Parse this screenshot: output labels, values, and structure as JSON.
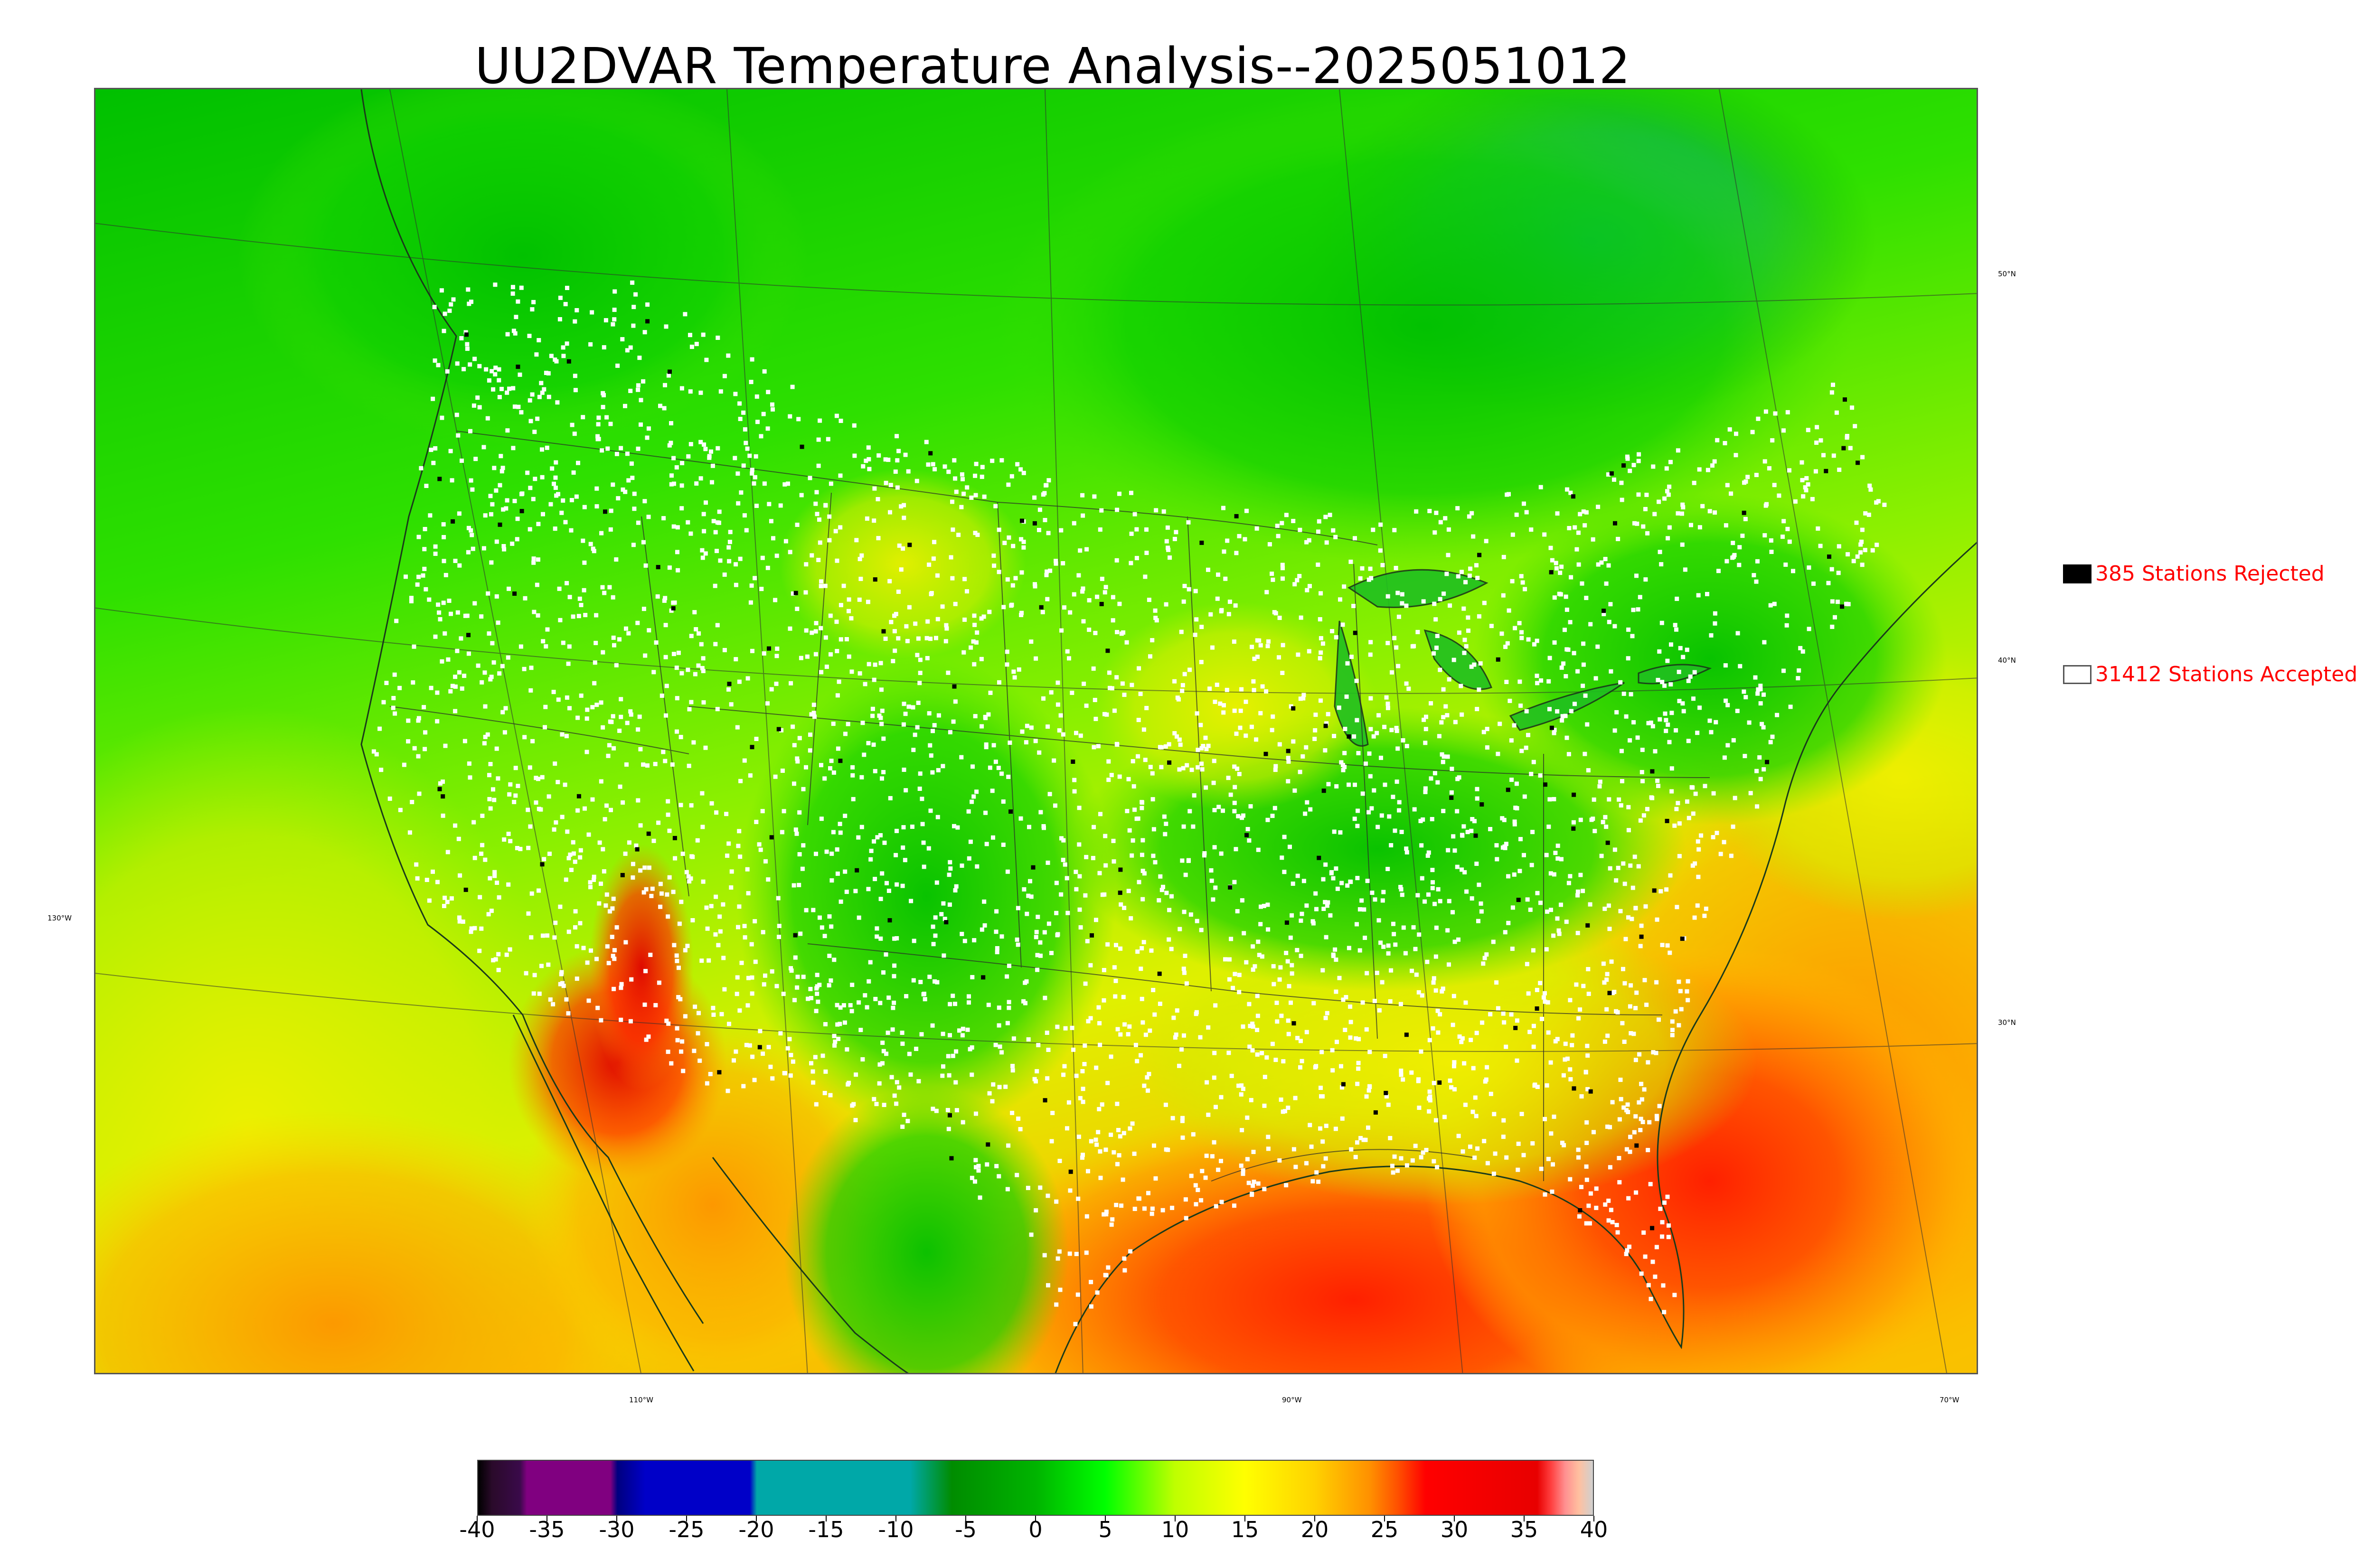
{
  "title": "UU2DVAR Temperature Analysis--2025051012",
  "map": {
    "lat_labels": [
      "50°N",
      "40°N",
      "30°N"
    ],
    "lon_labels": [
      "130°W",
      "110°W",
      "90°W",
      "70°W"
    ],
    "colors": {
      "accepted_station": "#ffffff",
      "rejected_station": "#000000",
      "coast": "#1a3a1a"
    }
  },
  "legend": {
    "rejected": {
      "label": "385 Stations Rejected",
      "count": 385,
      "swatch_color": "#000000"
    },
    "accepted": {
      "label": "31412 Stations Accepted",
      "count": 31412,
      "swatch_color": "#ffffff"
    }
  },
  "colorbar": {
    "ticks": [
      "-40",
      "-35",
      "-30",
      "-25",
      "-20",
      "-15",
      "-10",
      "-5",
      "0",
      "5",
      "10",
      "15",
      "20",
      "25",
      "30",
      "35",
      "40"
    ],
    "range": [
      -40,
      40
    ],
    "stops": [
      {
        "v": -40,
        "c": "#000000"
      },
      {
        "v": -39,
        "c": "#2a0a2a"
      },
      {
        "v": -37,
        "c": "#3a0a4a"
      },
      {
        "v": -36.5,
        "c": "#800080"
      },
      {
        "v": -30.5,
        "c": "#800080"
      },
      {
        "v": -30,
        "c": "#000080"
      },
      {
        "v": -28,
        "c": "#0000c8"
      },
      {
        "v": -20.5,
        "c": "#0000c8"
      },
      {
        "v": -20,
        "c": "#00a8a8"
      },
      {
        "v": -9,
        "c": "#00a8a8"
      },
      {
        "v": -6,
        "c": "#008c00"
      },
      {
        "v": 0,
        "c": "#00b400"
      },
      {
        "v": 5,
        "c": "#00ff00"
      },
      {
        "v": 10,
        "c": "#bfff00"
      },
      {
        "v": 15,
        "c": "#ffff00"
      },
      {
        "v": 20,
        "c": "#ffd200"
      },
      {
        "v": 24,
        "c": "#ff9000"
      },
      {
        "v": 26,
        "c": "#ff5000"
      },
      {
        "v": 28,
        "c": "#ff0000"
      },
      {
        "v": 36,
        "c": "#e80000"
      },
      {
        "v": 37,
        "c": "#ff4040"
      },
      {
        "v": 38,
        "c": "#ff9090"
      },
      {
        "v": 39,
        "c": "#ffc0a0"
      },
      {
        "v": 40,
        "c": "#d0d0d0"
      }
    ]
  }
}
